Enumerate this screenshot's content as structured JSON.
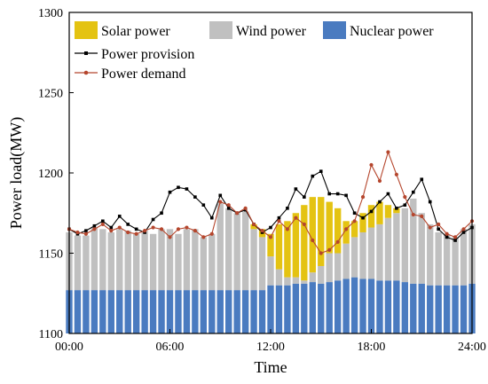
{
  "chart_data": {
    "type": "area",
    "xlabel": "Time",
    "ylabel": "Power load(MW)",
    "ylim": [
      1100,
      1300
    ],
    "y_ticks": [
      1100,
      1150,
      1200,
      1250,
      1300
    ],
    "xlim": [
      0,
      24
    ],
    "x_ticks": [
      "00:00",
      "06:00",
      "12:00",
      "18:00",
      "24:00"
    ],
    "legend_position": "top-left",
    "grid": false,
    "interval_hours": 0.5,
    "series": [
      {
        "name": "Nuclear power",
        "kind": "bar",
        "color": "#4a7bc0",
        "values": [
          1127,
          1127,
          1127,
          1127,
          1127,
          1127,
          1127,
          1127,
          1127,
          1127,
          1127,
          1127,
          1127,
          1127,
          1127,
          1127,
          1127,
          1127,
          1127,
          1127,
          1127,
          1127,
          1127,
          1127,
          1130,
          1130,
          1130,
          1131,
          1131,
          1132,
          1131,
          1132,
          1133,
          1134,
          1135,
          1134,
          1134,
          1133,
          1133,
          1133,
          1132,
          1131,
          1131,
          1130,
          1130,
          1130,
          1130,
          1130,
          1131
        ]
      },
      {
        "name": "Wind power",
        "kind": "bar",
        "color": "#c0c0c0",
        "values": [
          1163,
          1161,
          1161,
          1166,
          1165,
          1163,
          1165,
          1164,
          1162,
          1164,
          1162,
          1165,
          1165,
          1162,
          1165,
          1165,
          1160,
          1162,
          1181,
          1178,
          1175,
          1176,
          1165,
          1160,
          1148,
          1140,
          1135,
          1135,
          1133,
          1138,
          1142,
          1150,
          1150,
          1156,
          1160,
          1163,
          1166,
          1168,
          1172,
          1175,
          1178,
          1184,
          1175,
          1168,
          1163,
          1162,
          1160,
          1165,
          1168
        ]
      },
      {
        "name": "Solar power",
        "kind": "bar",
        "color": "#e4c312",
        "values": [
          1163,
          1161,
          1161,
          1166,
          1165,
          1163,
          1165,
          1164,
          1162,
          1164,
          1162,
          1165,
          1165,
          1162,
          1165,
          1165,
          1160,
          1162,
          1181,
          1178,
          1175,
          1176,
          1168,
          1165,
          1162,
          1168,
          1170,
          1175,
          1180,
          1185,
          1185,
          1182,
          1178,
          1170,
          1170,
          1175,
          1180,
          1182,
          1180,
          1178,
          1178,
          1184,
          1175,
          1168,
          1163,
          1162,
          1160,
          1165,
          1168
        ]
      },
      {
        "name": "Power provision",
        "kind": "line",
        "color": "#000000",
        "values": [
          1165,
          1162,
          1164,
          1167,
          1170,
          1166,
          1173,
          1168,
          1165,
          1163,
          1171,
          1175,
          1188,
          1191,
          1190,
          1185,
          1180,
          1172,
          1186,
          1178,
          1175,
          1177,
          1168,
          1163,
          1166,
          1172,
          1178,
          1190,
          1185,
          1198,
          1201,
          1187,
          1187,
          1186,
          1175,
          1172,
          1176,
          1182,
          1187,
          1178,
          1180,
          1188,
          1196,
          1182,
          1165,
          1160,
          1158,
          1163,
          1166
        ]
      },
      {
        "name": "Power demand",
        "kind": "line",
        "color": "#b5462d",
        "values": [
          1165,
          1163,
          1162,
          1165,
          1168,
          1164,
          1166,
          1163,
          1162,
          1164,
          1166,
          1165,
          1160,
          1165,
          1166,
          1164,
          1160,
          1162,
          1182,
          1180,
          1175,
          1178,
          1168,
          1164,
          1160,
          1170,
          1165,
          1172,
          1168,
          1158,
          1150,
          1152,
          1157,
          1165,
          1170,
          1185,
          1205,
          1195,
          1213,
          1199,
          1185,
          1174,
          1173,
          1166,
          1168,
          1162,
          1160,
          1165,
          1170
        ]
      }
    ]
  }
}
